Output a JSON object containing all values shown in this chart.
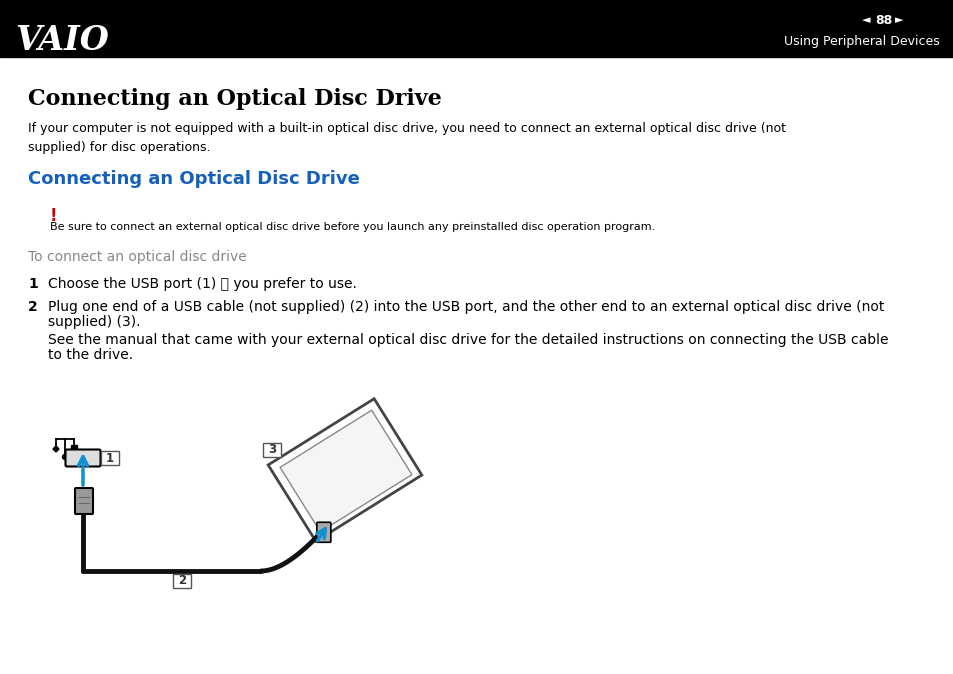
{
  "header_bg": "#000000",
  "header_text_color": "#ffffff",
  "page_bg": "#ffffff",
  "page_number": "88",
  "header_subtitle": "Using Peripheral Devices",
  "main_title": "Connecting an Optical Disc Drive",
  "intro_text": "If your computer is not equipped with a built-in optical disc drive, you need to connect an external optical disc drive (not\nsupplied) for disc operations.",
  "section_title": "Connecting an Optical Disc Drive",
  "section_title_color": "#1560bd",
  "warning_mark": "!",
  "warning_mark_color": "#cc0000",
  "warning_text": "Be sure to connect an external optical disc drive before you launch any preinstalled disc operation program.",
  "procedure_heading": "To connect an optical disc drive",
  "procedure_heading_color": "#888888",
  "step1_num": "1",
  "step1_text": "Choose the USB port (1) ␥ you prefer to use.",
  "step2_num": "2",
  "step2_text1": "Plug one end of a USB cable (not supplied) (2) into the USB port, and the other end to an external optical disc drive (not",
  "step2_text2": "supplied) (3).",
  "step2_text3": "See the manual that came with your external optical disc drive for the detailed instructions on connecting the USB cable",
  "step2_text4": "to the drive.",
  "arrow_color": "#1090d0",
  "cable_color": "#111111",
  "drive_outline": "#444444"
}
